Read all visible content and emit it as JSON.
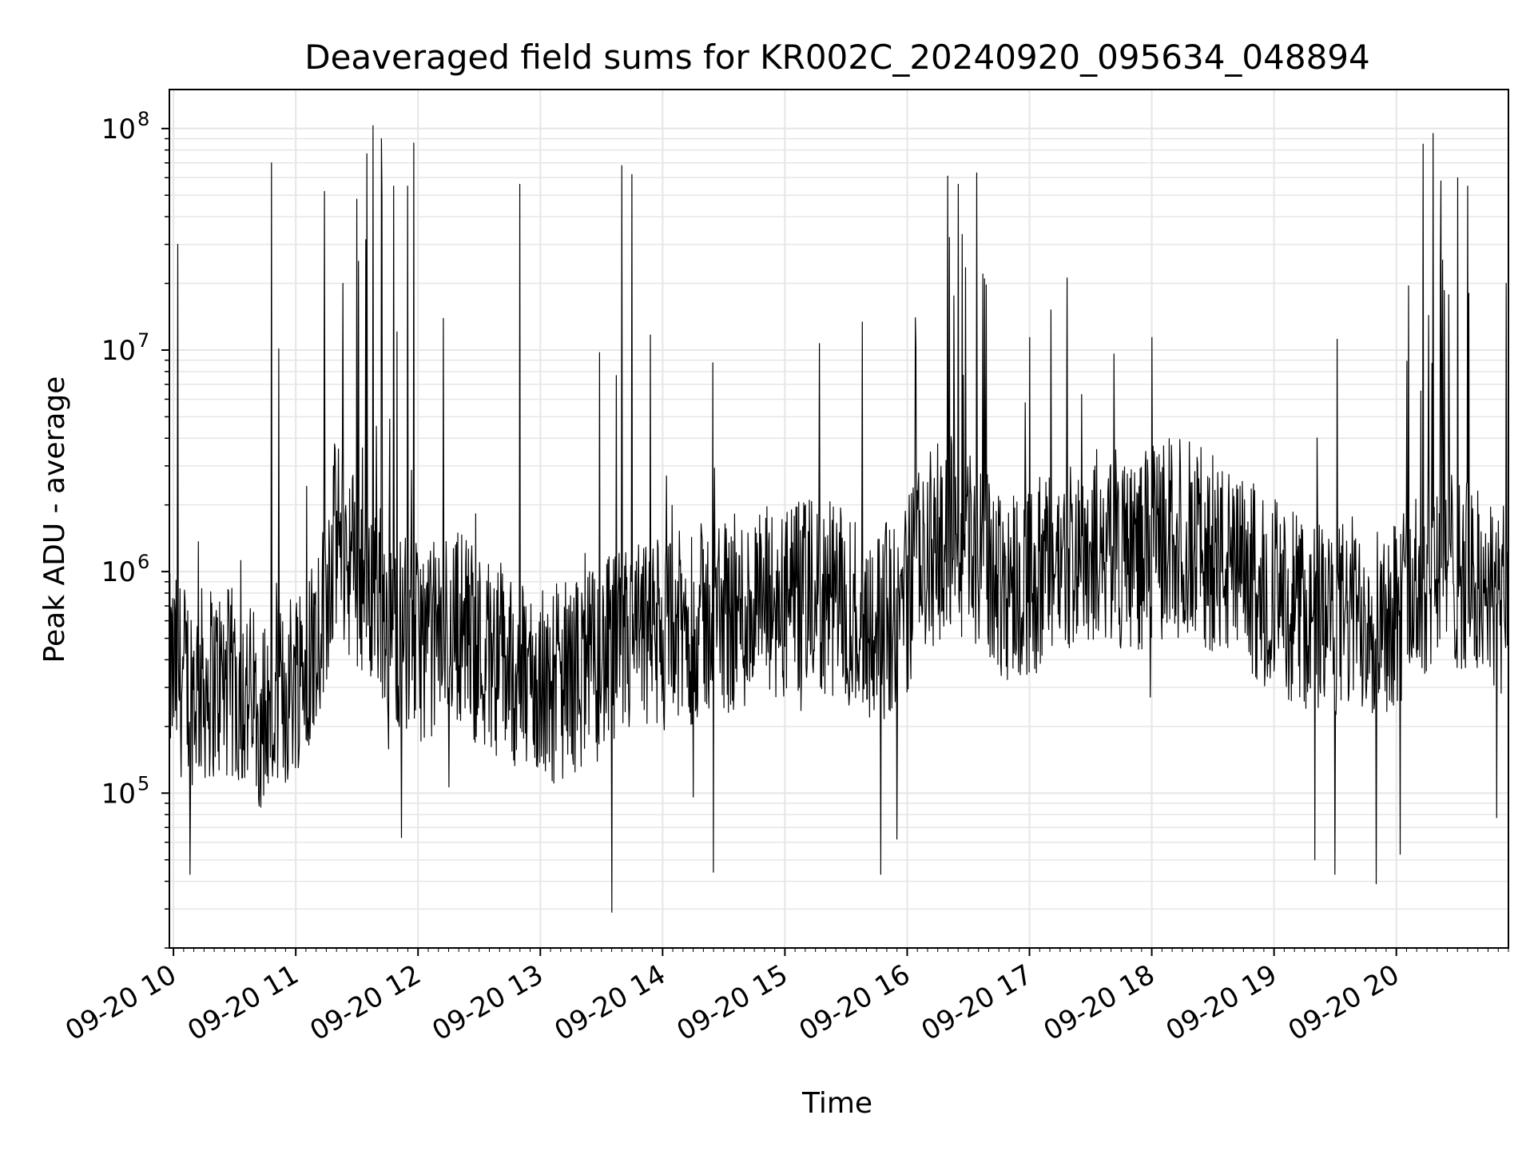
{
  "chart_data": {
    "type": "line",
    "title": "Deaveraged field sums for KR002C_20240920_095634_048894",
    "xlabel": "Time",
    "ylabel": "Peak ADU - average",
    "xscale": "time",
    "yscale": "log",
    "xlim": [
      "2024-09-20 09:58",
      "2024-09-20 20:55"
    ],
    "ylim": [
      20000,
      150000000
    ],
    "grid": true,
    "x_ticks": [
      "09-20 10",
      "09-20 11",
      "09-20 12",
      "09-20 13",
      "09-20 14",
      "09-20 15",
      "09-20 16",
      "09-20 17",
      "09-20 18",
      "09-20 19",
      "09-20 20"
    ],
    "y_ticks": [
      {
        "value": 100000,
        "base": "10",
        "exp": "5"
      },
      {
        "value": 1000000,
        "base": "10",
        "exp": "6"
      },
      {
        "value": 10000000,
        "base": "10",
        "exp": "7"
      },
      {
        "value": 100000000,
        "base": "10",
        "exp": "8"
      }
    ],
    "colors": {
      "line": "#000000",
      "grid": "#e6e6e6"
    },
    "series": [
      {
        "x": [
          "2024-09-20 10:00",
          "2024-09-20 10:10",
          "2024-09-20 10:20",
          "2024-09-20 10:30",
          "2024-09-20 10:40",
          "2024-09-20 10:50",
          "2024-09-20 11:00",
          "2024-09-20 11:10",
          "2024-09-20 11:20",
          "2024-09-20 11:30",
          "2024-09-20 11:40",
          "2024-09-20 11:50",
          "2024-09-20 12:00",
          "2024-09-20 12:10",
          "2024-09-20 12:20",
          "2024-09-20 12:30",
          "2024-09-20 12:40",
          "2024-09-20 12:50",
          "2024-09-20 13:00",
          "2024-09-20 13:10",
          "2024-09-20 13:20",
          "2024-09-20 13:30",
          "2024-09-20 13:40",
          "2024-09-20 13:50",
          "2024-09-20 14:00",
          "2024-09-20 14:10",
          "2024-09-20 14:20",
          "2024-09-20 14:30",
          "2024-09-20 14:40",
          "2024-09-20 14:50",
          "2024-09-20 15:00",
          "2024-09-20 15:10",
          "2024-09-20 15:20",
          "2024-09-20 15:30",
          "2024-09-20 15:40",
          "2024-09-20 15:50",
          "2024-09-20 16:00",
          "2024-09-20 16:10",
          "2024-09-20 16:20",
          "2024-09-20 16:30",
          "2024-09-20 16:40",
          "2024-09-20 16:50",
          "2024-09-20 17:00",
          "2024-09-20 17:10",
          "2024-09-20 17:20",
          "2024-09-20 17:30",
          "2024-09-20 17:40",
          "2024-09-20 17:50",
          "2024-09-20 18:00",
          "2024-09-20 18:10",
          "2024-09-20 18:20",
          "2024-09-20 18:30",
          "2024-09-20 18:40",
          "2024-09-20 18:50",
          "2024-09-20 19:00",
          "2024-09-20 19:10",
          "2024-09-20 19:20",
          "2024-09-20 19:30",
          "2024-09-20 19:40",
          "2024-09-20 19:50",
          "2024-09-20 20:00",
          "2024-09-20 20:10",
          "2024-09-20 20:20",
          "2024-09-20 20:30",
          "2024-09-20 20:40",
          "2024-09-20 20:50"
        ],
        "y": [
          350000,
          300000,
          320000,
          300000,
          250000,
          220000,
          350000,
          500000,
          1500000,
          1000000,
          800000,
          550000,
          480000,
          500000,
          600000,
          450000,
          400000,
          350000,
          300000,
          320000,
          350000,
          400000,
          450000,
          500000,
          500000,
          550000,
          600000,
          650000,
          650000,
          700000,
          700000,
          750000,
          750000,
          700000,
          600000,
          600000,
          800000,
          1200000,
          1500000,
          1400000,
          1000000,
          900000,
          900000,
          1000000,
          1200000,
          1300000,
          1300000,
          1200000,
          1300000,
          1500000,
          1400000,
          1200000,
          1000000,
          900000,
          800000,
          700000,
          600000,
          600000,
          650000,
          650000,
          700000,
          800000,
          1200000,
          1000000,
          900000,
          700000
        ]
      },
      {
        "name": "",
        "x": [
          "2024-09-20 10:02",
          "2024-09-20 10:48",
          "2024-09-20 11:14",
          "2024-09-20 11:23",
          "2024-09-20 11:30",
          "2024-09-20 11:35",
          "2024-09-20 11:38",
          "2024-09-20 11:42",
          "2024-09-20 11:48",
          "2024-09-20 11:55",
          "2024-09-20 11:58",
          "2024-09-20 12:50",
          "2024-09-20 13:40",
          "2024-09-20 13:45",
          "2024-09-20 15:17",
          "2024-09-20 16:04",
          "2024-09-20 16:20",
          "2024-09-20 16:25",
          "2024-09-20 16:34",
          "2024-09-20 16:38",
          "2024-09-20 17:00",
          "2024-09-20 18:00",
          "2024-09-20 20:06",
          "2024-09-20 20:13",
          "2024-09-20 20:18",
          "2024-09-20 20:22",
          "2024-09-20 20:30",
          "2024-09-20 20:35",
          "2024-09-20 20:54"
        ],
        "y": [
          30000000,
          70000000,
          52000000,
          20000000,
          48000000,
          77000000,
          103000000,
          90000000,
          55000000,
          55000000,
          86000000,
          56000000,
          68000000,
          62000000,
          10700000,
          14000000,
          61000000,
          56000000,
          63000000,
          21000000,
          11400000,
          11400000,
          19500000,
          85000000,
          95000000,
          58000000,
          60000000,
          55000000,
          20000000
        ]
      },
      {
        "name": "",
        "x": [
          "2024-09-20 10:08",
          "2024-09-20 11:52",
          "2024-09-20 13:35",
          "2024-09-20 14:25",
          "2024-09-20 15:47",
          "2024-09-20 15:55",
          "2024-09-20 19:20",
          "2024-09-20 19:30",
          "2024-09-20 19:50",
          "2024-09-20 20:02"
        ],
        "y": [
          43000,
          63000,
          29000,
          44000,
          43000,
          62000,
          50000,
          43000,
          39000,
          53000
        ]
      }
    ]
  }
}
